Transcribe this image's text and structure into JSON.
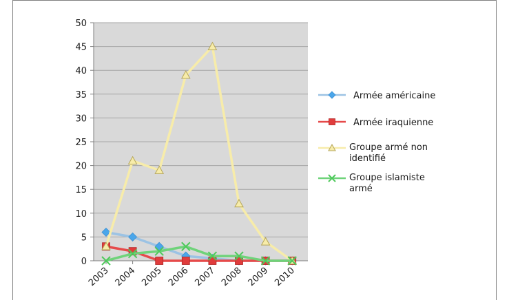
{
  "chart_data": {
    "type": "line",
    "title": "",
    "xlabel": "",
    "ylabel": "",
    "categories": [
      "2003",
      "2004",
      "2005",
      "2006",
      "2007",
      "2008",
      "2009",
      "2010"
    ],
    "ylim": [
      0,
      50
    ],
    "yticks": [
      0,
      5,
      10,
      15,
      20,
      25,
      30,
      35,
      40,
      45,
      50
    ],
    "grid": true,
    "legend_position": "right",
    "plot_background": "#d9d9d9",
    "series": [
      {
        "name": "Armée américaine",
        "values": [
          6,
          5,
          3,
          1,
          0.5,
          0,
          0,
          0
        ],
        "color": "#9cc3e4",
        "marker_color": "#4aa6ea",
        "marker": "diamond",
        "legend_lines": [
          "Armée américaine"
        ]
      },
      {
        "name": "Armée iraquienne",
        "values": [
          3,
          2,
          0,
          0,
          0,
          0,
          0,
          0
        ],
        "color": "#e64a4a",
        "marker_color": "#e03c3c",
        "marker": "square",
        "legend_lines": [
          "Armée iraquienne"
        ]
      },
      {
        "name": "Groupe armé non identifié",
        "values": [
          3,
          21,
          19,
          39,
          45,
          12,
          4,
          0
        ],
        "color": "#f7ecaa",
        "marker_color": "#f7ecaa",
        "marker": "triangle",
        "legend_lines": [
          "Groupe armé non",
          "identifié"
        ]
      },
      {
        "name": "Groupe islamiste armé",
        "values": [
          0,
          1.5,
          2,
          3,
          1,
          1,
          0,
          0
        ],
        "color": "#6fd37a",
        "marker_color": "#4ec95b",
        "marker": "x",
        "legend_lines": [
          "Groupe islamiste",
          "armé"
        ]
      }
    ]
  }
}
